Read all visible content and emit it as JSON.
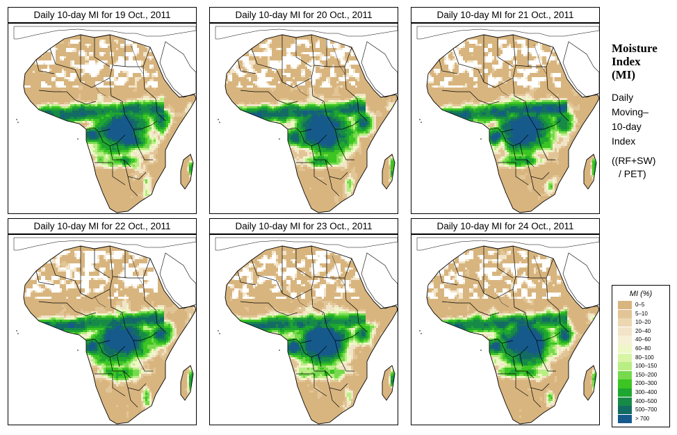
{
  "panels": [
    {
      "title": "Daily 10-day MI for  19 Oct., 2011",
      "variant": 0
    },
    {
      "title": "Daily 10-day MI for  20 Oct., 2011",
      "variant": 1
    },
    {
      "title": "Daily 10-day MI for  21 Oct., 2011",
      "variant": 2
    },
    {
      "title": "Daily 10-day MI for  22 Oct., 2011",
      "variant": 3
    },
    {
      "title": "Daily 10-day MI for  23 Oct., 2011",
      "variant": 4
    },
    {
      "title": "Daily 10-day MI for  24 Oct., 2011",
      "variant": 5
    }
  ],
  "side": {
    "title": [
      "Moisture",
      "Index",
      "(MI)"
    ],
    "description": [
      "Daily",
      "Moving–",
      "10-day",
      "Index"
    ],
    "formula": [
      "((RF+SW)",
      "/ PET)"
    ]
  },
  "legend": {
    "title": "MI (%)",
    "classes": [
      {
        "label": "0–5",
        "color": "#d8b57f"
      },
      {
        "label": "5–10",
        "color": "#e2c596"
      },
      {
        "label": "10–20",
        "color": "#ecd7b0"
      },
      {
        "label": "20–40",
        "color": "#f2e4c8"
      },
      {
        "label": "40–60",
        "color": "#f7f0d7"
      },
      {
        "label": "60–80",
        "color": "#eef7c6"
      },
      {
        "label": "80–100",
        "color": "#d8f5a6"
      },
      {
        "label": "100–150",
        "color": "#b9ee84"
      },
      {
        "label": "150–200",
        "color": "#77d94e"
      },
      {
        "label": "200–300",
        "color": "#3cc523"
      },
      {
        "label": "300–400",
        "color": "#1fa630"
      },
      {
        "label": "400–500",
        "color": "#178a47"
      },
      {
        "label": "500–700",
        "color": "#136c63"
      },
      {
        "label": "> 700",
        "color": "#165a8c"
      }
    ]
  }
}
